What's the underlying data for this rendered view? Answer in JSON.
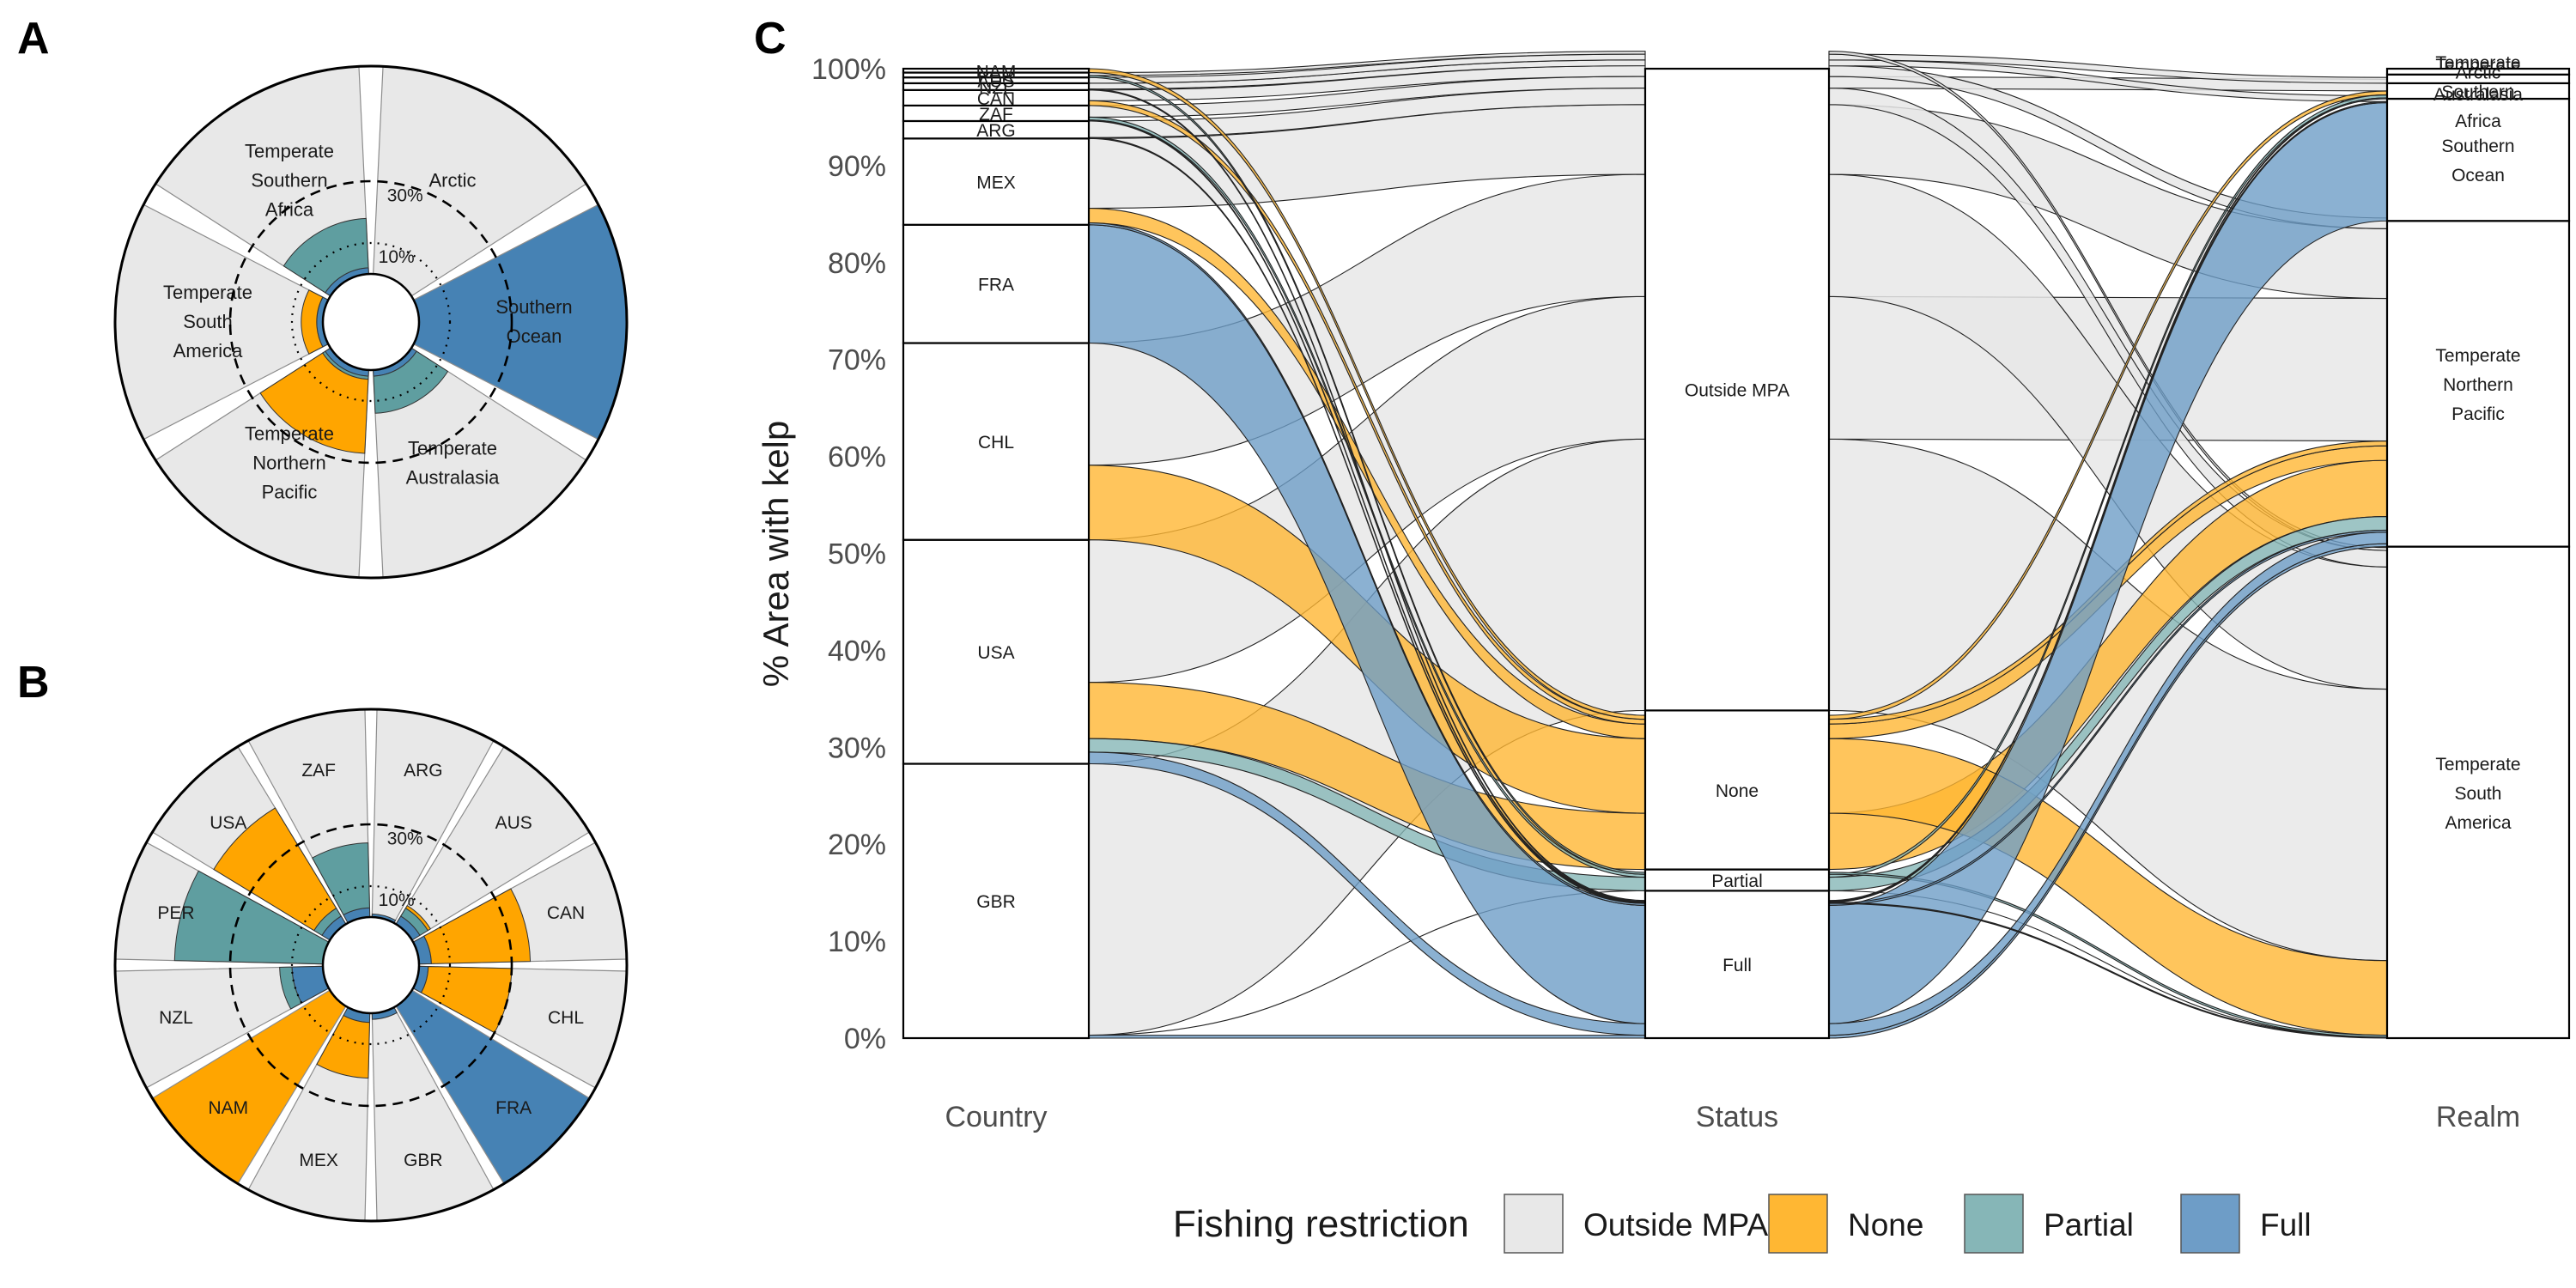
{
  "panels": {
    "a": "A",
    "b": "B",
    "c": "C"
  },
  "colors": {
    "outside": "#e8e8e8",
    "none": "#ffa500",
    "partial": "#5f9ea0",
    "full": "#4682b4",
    "outside_alpha": "#e8e8e8",
    "none_alpha": "#ffb733",
    "partial_alpha": "#86b6b7",
    "full_alpha": "#6e9dc7"
  },
  "chart_data": [
    {
      "type": "polar_bar",
      "panel": "A",
      "reference_rings": [
        {
          "value": 10,
          "label": "10%",
          "style": "dotted"
        },
        {
          "value": 30,
          "label": "30%",
          "style": "dashed"
        }
      ],
      "segments": [
        {
          "name": "Arctic",
          "label": [
            "Arctic"
          ],
          "none": 0,
          "partial": 0,
          "full": 0,
          "outside_fill": "outside"
        },
        {
          "name": "Southern Ocean",
          "label": [
            "Southern",
            "Ocean"
          ],
          "none": 0,
          "partial": 0,
          "full": 0,
          "outside_fill": "full"
        },
        {
          "name": "Temperate Australasia",
          "label": [
            "Temperate",
            "Australasia"
          ],
          "none": 0,
          "partial": 12,
          "full": 2,
          "outside_fill": "outside"
        },
        {
          "name": "Temperate Northern Pacific",
          "label": [
            "Temperate",
            "Northern",
            "Pacific"
          ],
          "none": 24,
          "partial": 1,
          "full": 2,
          "outside_fill": "outside"
        },
        {
          "name": "Temperate South America",
          "label": [
            "Temperate",
            "South",
            "America"
          ],
          "none": 5,
          "partial": 0,
          "full": 2,
          "outside_fill": "outside"
        },
        {
          "name": "Temperate Southern Africa",
          "label": [
            "Temperate",
            "Southern",
            "Africa"
          ],
          "none": 0,
          "partial": 16,
          "full": 2,
          "outside_fill": "outside"
        }
      ]
    },
    {
      "type": "polar_bar",
      "panel": "B",
      "reference_rings": [
        {
          "value": 10,
          "label": "10%",
          "style": "dotted"
        },
        {
          "value": 30,
          "label": "30%",
          "style": "dashed"
        }
      ],
      "segments": [
        {
          "name": "ARG",
          "label": [
            "ARG"
          ],
          "none": 0,
          "partial": 0,
          "full": 1,
          "outside_fill": "outside"
        },
        {
          "name": "AUS",
          "label": [
            "AUS"
          ],
          "none": 1,
          "partial": 3,
          "full": 3,
          "outside_fill": "outside"
        },
        {
          "name": "CAN",
          "label": [
            "CAN"
          ],
          "none": 32,
          "partial": 0,
          "full": 4,
          "outside_fill": "outside"
        },
        {
          "name": "CHL",
          "label": [
            "CHL"
          ],
          "none": 27,
          "partial": 0,
          "full": 3,
          "outside_fill": "outside"
        },
        {
          "name": "FRA",
          "label": [
            "FRA"
          ],
          "none": 0,
          "partial": 0,
          "full": 0,
          "outside_fill": "full"
        },
        {
          "name": "GBR",
          "label": [
            "GBR"
          ],
          "none": 0,
          "partial": 0,
          "full": 2,
          "outside_fill": "outside"
        },
        {
          "name": "MEX",
          "label": [
            "MEX"
          ],
          "none": 18,
          "partial": 0,
          "full": 3,
          "outside_fill": "outside"
        },
        {
          "name": "NAM",
          "label": [
            "NAM"
          ],
          "none": 0,
          "partial": 0,
          "full": 0,
          "outside_fill": "none"
        },
        {
          "name": "NZL",
          "label": [
            "NZL"
          ],
          "none": 0,
          "partial": 4,
          "full": 10,
          "outside_fill": "outside"
        },
        {
          "name": "PER",
          "label": [
            "PER"
          ],
          "none": 0,
          "partial": 48,
          "full": 0,
          "outside_fill": "outside"
        },
        {
          "name": "USA",
          "label": [
            "USA"
          ],
          "none": 38,
          "partial": 3,
          "full": 3,
          "outside_fill": "outside"
        },
        {
          "name": "ZAF",
          "label": [
            "ZAF"
          ],
          "none": 0,
          "partial": 21,
          "full": 3,
          "outside_fill": "outside"
        }
      ]
    },
    {
      "type": "alluvial",
      "panel": "C",
      "ylabel": "% Area with kelp",
      "ylim": [
        0,
        100
      ],
      "yticks": [
        "0%",
        "10%",
        "20%",
        "30%",
        "40%",
        "50%",
        "60%",
        "70%",
        "80%",
        "90%",
        "100%"
      ],
      "axes": [
        "Country",
        "Status",
        "Realm"
      ],
      "country_strata": [
        {
          "name": "GBR",
          "value": 28.3
        },
        {
          "name": "USA",
          "value": 23.1
        },
        {
          "name": "CHL",
          "value": 20.3
        },
        {
          "name": "FRA",
          "value": 12.2
        },
        {
          "name": "MEX",
          "value": 8.9
        },
        {
          "name": "ARG",
          "value": 1.8
        },
        {
          "name": "ZAF",
          "value": 1.6
        },
        {
          "name": "CAN",
          "value": 1.6
        },
        {
          "name": "NZL",
          "value": 0.7
        },
        {
          "name": "AUS",
          "value": 0.6
        },
        {
          "name": "PER",
          "value": 0.5
        },
        {
          "name": "NAM",
          "value": 0.4
        }
      ],
      "status_strata": [
        {
          "name": "Full",
          "value": 15.2
        },
        {
          "name": "Partial",
          "value": 2.2
        },
        {
          "name": "None",
          "value": 16.4
        },
        {
          "name": "Outside MPA",
          "value": 66.2
        }
      ],
      "realm_strata": [
        {
          "name": "Temperate South America",
          "label": [
            "Temperate",
            "South",
            "America"
          ],
          "value": 50.7
        },
        {
          "name": "Temperate Northern Pacific",
          "label": [
            "Temperate",
            "Northern",
            "Pacific"
          ],
          "value": 33.6
        },
        {
          "name": "Southern Ocean",
          "label": [
            "Southern",
            "Ocean"
          ],
          "value": 12.6
        },
        {
          "name": "Temperate Southern Africa",
          "label": [
            "Temperate",
            "Southern",
            "Africa"
          ],
          "value": 1.6
        },
        {
          "name": "Temperate Australasia",
          "label": [
            "Temperate",
            "Australasia"
          ],
          "value": 0.9
        },
        {
          "name": "Arctic",
          "label": [
            "Arctic"
          ],
          "value": 0.6
        }
      ],
      "flows": [
        {
          "country": "GBR",
          "status": "Full",
          "realm": "Temperate Northern Pacific",
          "value": 0.3
        },
        {
          "country": "GBR",
          "status": "Partial",
          "realm": "Temperate South America",
          "value": 0.0
        },
        {
          "country": "GBR",
          "status": "Outside MPA",
          "realm": "Temperate South America",
          "value": 28.0
        },
        {
          "country": "USA",
          "status": "Full",
          "realm": "Temperate Northern Pacific",
          "value": 1.2
        },
        {
          "country": "USA",
          "status": "Partial",
          "realm": "Temperate Northern Pacific",
          "value": 1.4
        },
        {
          "country": "USA",
          "status": "None",
          "realm": "Temperate Northern Pacific",
          "value": 5.8
        },
        {
          "country": "USA",
          "status": "Outside MPA",
          "realm": "Temperate Northern Pacific",
          "value": 14.7
        },
        {
          "country": "CHL",
          "status": "None",
          "realm": "Temperate South America",
          "value": 7.7
        },
        {
          "country": "CHL",
          "status": "Outside MPA",
          "realm": "Temperate South America",
          "value": 12.6
        },
        {
          "country": "FRA",
          "status": "Full",
          "realm": "Southern Ocean",
          "value": 12.2
        },
        {
          "country": "MEX",
          "status": "Full",
          "realm": "Temperate Northern Pacific",
          "value": 0.2
        },
        {
          "country": "MEX",
          "status": "None",
          "realm": "Temperate Northern Pacific",
          "value": 1.5
        },
        {
          "country": "MEX",
          "status": "Outside MPA",
          "realm": "Temperate Northern Pacific",
          "value": 7.2
        },
        {
          "country": "ARG",
          "status": "Full",
          "realm": "Temperate South America",
          "value": 0.1
        },
        {
          "country": "ARG",
          "status": "Outside MPA",
          "realm": "Temperate South America",
          "value": 1.7
        },
        {
          "country": "ZAF",
          "status": "Full",
          "realm": "Temperate Southern Africa",
          "value": 0.1
        },
        {
          "country": "ZAF",
          "status": "Partial",
          "realm": "Temperate Southern Africa",
          "value": 0.3
        },
        {
          "country": "ZAF",
          "status": "Outside MPA",
          "realm": "Temperate Southern Africa",
          "value": 1.2
        },
        {
          "country": "CAN",
          "status": "None",
          "realm": "Temperate Northern Pacific",
          "value": 0.5
        },
        {
          "country": "CAN",
          "status": "Outside MPA",
          "realm": "Temperate Northern Pacific",
          "value": 1.1
        },
        {
          "country": "NZL",
          "status": "Full",
          "realm": "Southern Ocean",
          "value": 0.1
        },
        {
          "country": "NZL",
          "status": "Outside MPA",
          "realm": "Southern Ocean",
          "value": 0.6
        },
        {
          "country": "AUS",
          "status": "Outside MPA",
          "realm": "Temperate Australasia",
          "value": 0.6
        },
        {
          "country": "PER",
          "status": "Partial",
          "realm": "Temperate South America",
          "value": 0.2
        },
        {
          "country": "PER",
          "status": "Outside MPA",
          "realm": "Temperate South America",
          "value": 0.3
        },
        {
          "country": "NAM",
          "status": "None",
          "realm": "Temperate Southern Africa",
          "value": 0.4
        }
      ]
    }
  ],
  "legend": {
    "title": "Fishing restriction",
    "items": [
      {
        "key": "outside",
        "label": "Outside MPA"
      },
      {
        "key": "none",
        "label": "None"
      },
      {
        "key": "partial",
        "label": "Partial"
      },
      {
        "key": "full",
        "label": "Full"
      }
    ]
  }
}
